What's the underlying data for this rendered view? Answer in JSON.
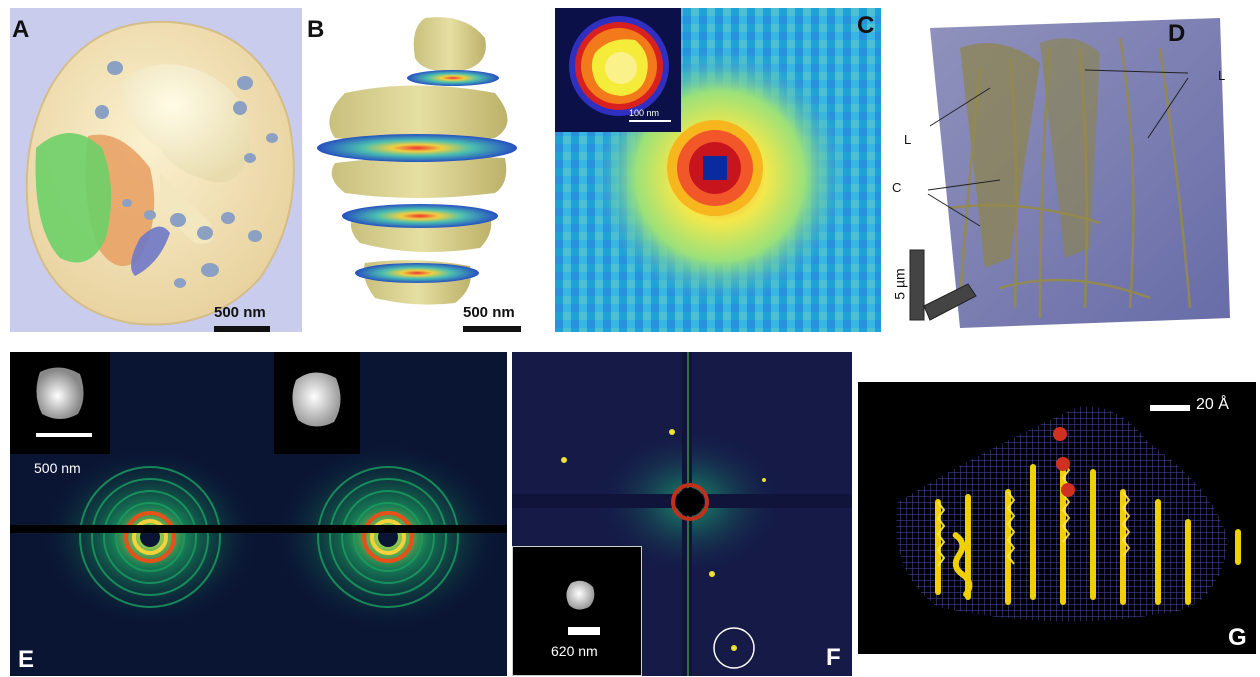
{
  "panels": {
    "a": {
      "label": "A",
      "scale_text": "500 nm"
    },
    "b": {
      "label": "B",
      "scale_text": "500 nm"
    },
    "c": {
      "label": "C",
      "inset_scale_text": "100 nm"
    },
    "d": {
      "label": "D",
      "annot_l1": "L",
      "annot_l2": "L",
      "annot_c": "C",
      "scale_text": "5 µm"
    },
    "e": {
      "label": "E",
      "inset_scale_text": "500 nm"
    },
    "f": {
      "label": "F",
      "inset_scale_text": "620 nm"
    },
    "g": {
      "label": "G",
      "scale_text": "20 Å"
    }
  },
  "colors": {
    "a_background": "#c9ccec",
    "c_background": "#27a8e0",
    "e_background": "#0a1534",
    "f_background": "#151a47",
    "g_background": "#000000",
    "protein_ribbon": "#f0d000",
    "density_mesh": "#5b60c8"
  }
}
